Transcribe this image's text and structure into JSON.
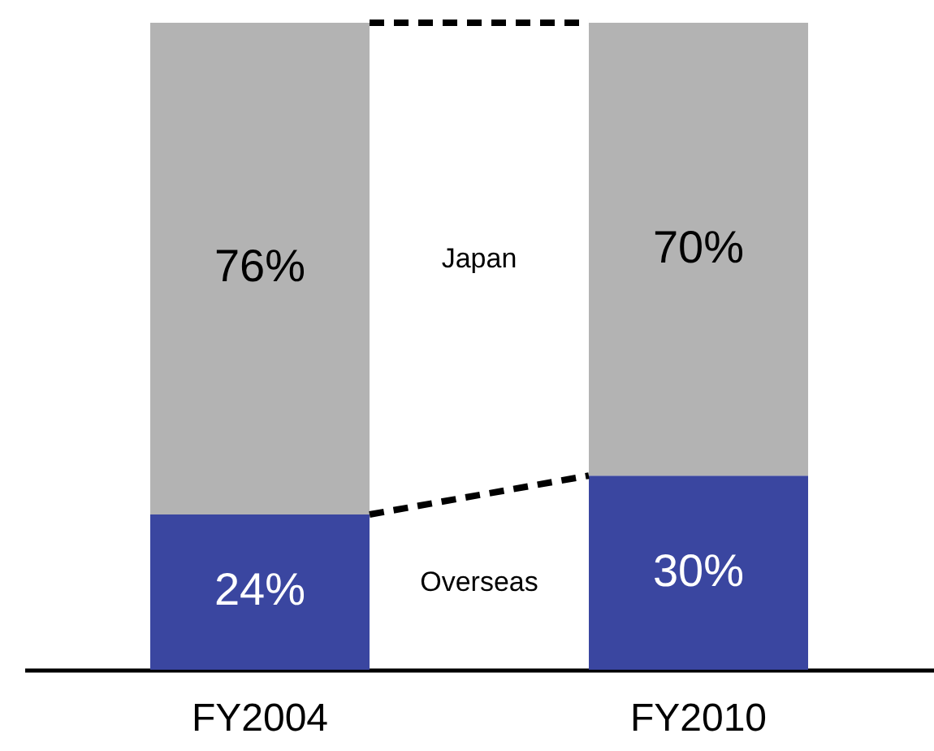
{
  "chart_data": {
    "type": "bar",
    "stacked": true,
    "legend": false,
    "categories": [
      "FY2004",
      "FY2010"
    ],
    "series": [
      {
        "name": "Overseas",
        "color": "#3a46a0",
        "values": [
          24,
          30
        ],
        "value_labels": [
          "24%",
          "30%"
        ]
      },
      {
        "name": "Japan",
        "color": "#b3b3b3",
        "values": [
          76,
          70
        ],
        "value_labels": [
          "76%",
          "70%"
        ]
      }
    ]
  }
}
